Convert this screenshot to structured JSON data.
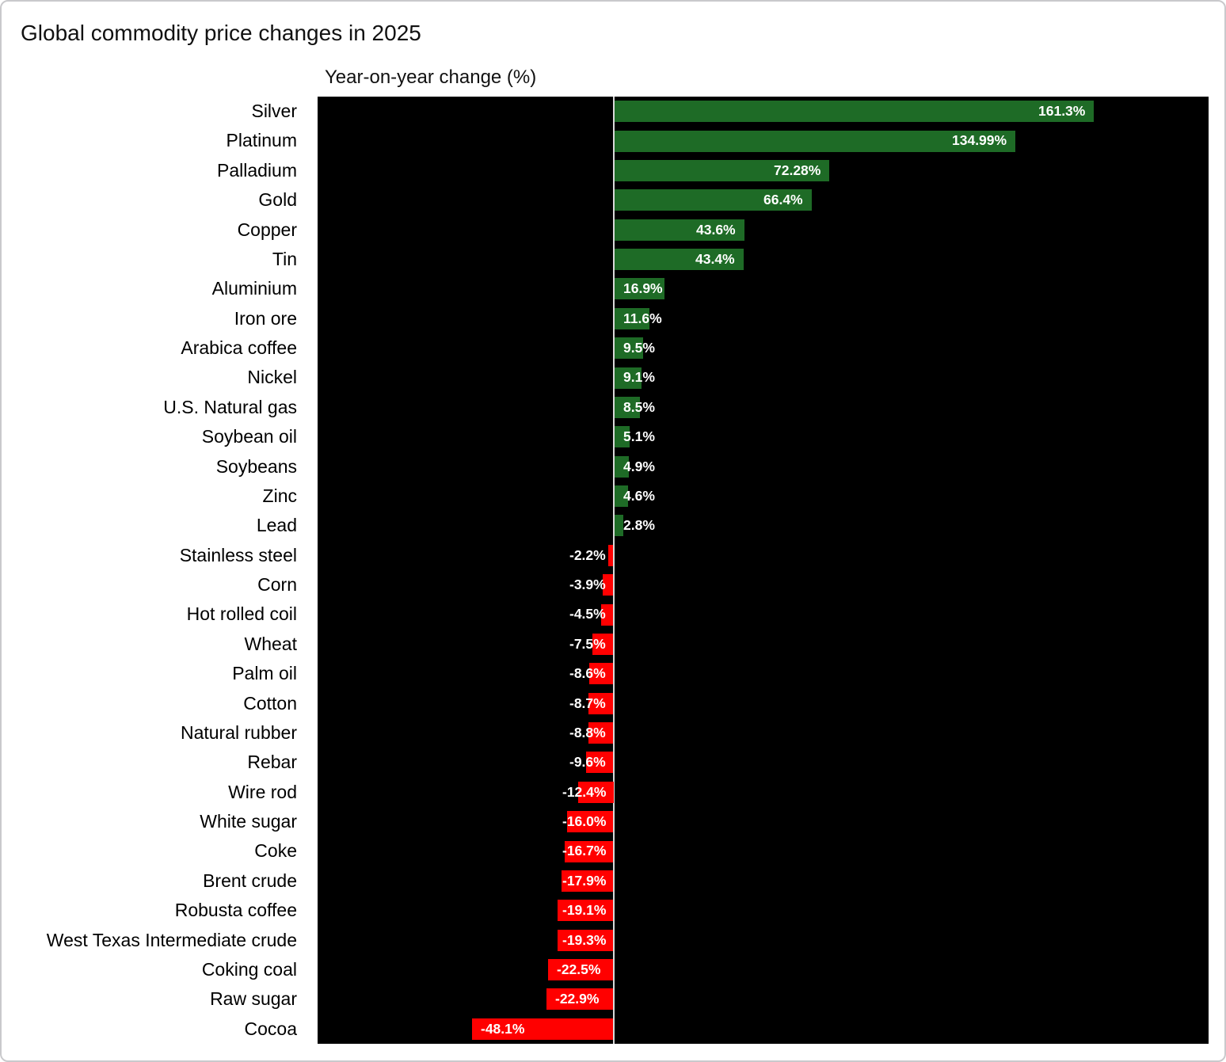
{
  "title": "Global commodity price changes in 2025",
  "axis_title": "Year-on-year change (%)",
  "colors": {
    "positive_bar": "#1e6b26",
    "negative_bar": "#ff0000",
    "plot_background": "#000000",
    "baseline": "#d9d9d9",
    "page_background": "#ffffff",
    "border": "#c9c9cc",
    "title_text": "#111111",
    "category_text": "#000000",
    "value_text": "#ffffff"
  },
  "chart_data": {
    "type": "bar",
    "orientation": "horizontal",
    "title": "Global commodity price changes in 2025",
    "xlabel": "Year-on-year change (%)",
    "ylabel": "",
    "xlim": [
      -100,
      200
    ],
    "grid": false,
    "legend": false,
    "categories": [
      "Silver",
      "Platinum",
      "Palladium",
      "Gold",
      "Copper",
      "Tin",
      "Aluminium",
      "Iron ore",
      "Arabica coffee",
      "Nickel",
      "U.S. Natural gas",
      "Soybean oil",
      "Soybeans",
      "Zinc",
      "Lead",
      "Stainless steel",
      "Corn",
      "Hot rolled coil",
      "Wheat",
      "Palm oil",
      "Cotton",
      "Natural rubber",
      "Rebar",
      "Wire rod",
      "White sugar",
      "Coke",
      "Brent crude",
      "Robusta coffee",
      "West Texas Intermediate crude",
      "Coking coal",
      "Raw sugar",
      "Cocoa"
    ],
    "values": [
      161.3,
      134.99,
      72.28,
      66.4,
      43.6,
      43.4,
      16.9,
      11.6,
      9.5,
      9.1,
      8.5,
      5.1,
      4.9,
      4.6,
      2.8,
      -2.2,
      -3.9,
      -4.5,
      -7.5,
      -8.6,
      -8.7,
      -8.8,
      -9.6,
      -12.4,
      -16.0,
      -16.7,
      -17.9,
      -19.1,
      -19.3,
      -22.5,
      -22.9,
      -48.1
    ],
    "value_labels": [
      "161.3%",
      "134.99%",
      "72.28%",
      "66.4%",
      "43.6%",
      "43.4%",
      "16.9%",
      "11.6%",
      "9.5%",
      "9.1%",
      "8.5%",
      "5.1%",
      "4.9%",
      "4.6%",
      "2.8%",
      "-2.2%",
      "-3.9%",
      "-4.5%",
      "-7.5%",
      "-8.6%",
      "-8.7%",
      "-8.8%",
      "-9.6%",
      "-12.4%",
      "-16.0%",
      "-16.7%",
      "-17.9%",
      "-19.1%",
      "-19.3%",
      "-22.5%",
      "-22.9%",
      "-48.1%"
    ]
  }
}
